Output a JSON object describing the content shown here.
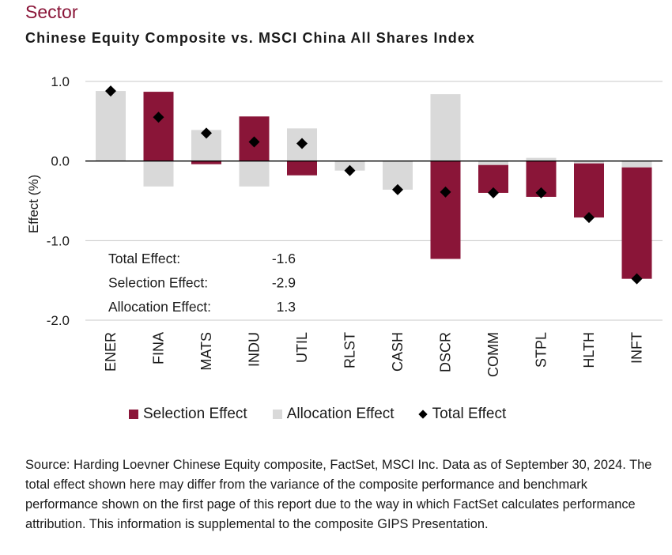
{
  "header": {
    "section": "Sector",
    "title": "Chinese Equity Composite vs. MSCI China All Shares Index"
  },
  "chart_data": {
    "type": "bar",
    "stacked": true,
    "ylabel": "Effect (%)",
    "ylim": [
      -2.0,
      1.0
    ],
    "yticks": [
      1.0,
      0.0,
      -1.0,
      -2.0
    ],
    "ytick_labels": [
      "1.0",
      "0.0",
      "-1.0",
      "-2.0"
    ],
    "grid": true,
    "categories": [
      "ENER",
      "FINA",
      "MATS",
      "INDU",
      "UTIL",
      "RLST",
      "CASH",
      "DSCR",
      "COMM",
      "STPL",
      "HLTH",
      "INFT"
    ],
    "series": [
      {
        "name": "Selection Effect",
        "type": "bar",
        "color": "#8a1538",
        "values": [
          0.0,
          0.87,
          -0.04,
          0.56,
          -0.18,
          0.0,
          0.0,
          -1.23,
          -0.35,
          -0.45,
          -0.68,
          -1.4
        ]
      },
      {
        "name": "Allocation Effect",
        "type": "bar",
        "color": "#d9d9d9",
        "values": [
          0.88,
          -0.32,
          0.39,
          -0.32,
          0.41,
          -0.12,
          -0.36,
          0.84,
          -0.05,
          0.04,
          -0.03,
          -0.08
        ]
      },
      {
        "name": "Total Effect",
        "type": "marker",
        "color": "#000000",
        "values": [
          0.88,
          0.55,
          0.35,
          0.24,
          0.22,
          -0.12,
          -0.36,
          -0.39,
          -0.4,
          -0.4,
          -0.71,
          -1.48
        ]
      }
    ],
    "summary": [
      {
        "label": "Total Effect:",
        "value": "-1.6"
      },
      {
        "label": "Selection Effect:",
        "value": "-2.9"
      },
      {
        "label": "Allocation Effect:",
        "value": "1.3"
      }
    ]
  },
  "legend": {
    "selection": "Selection Effect",
    "allocation": "Allocation Effect",
    "total": "Total Effect"
  },
  "colors": {
    "selection": "#8a1538",
    "allocation": "#d9d9d9",
    "total": "#000000",
    "heading": "#8a1538"
  },
  "footer": {
    "source": "Source: Harding Loevner Chinese Equity composite, FactSet, MSCI Inc. Data as of September 30, 2024. The total effect shown here may differ from the variance of the composite performance and benchmark performance shown on the first page of this report due to the way in which FactSet calculates performance attribution. This information is supplemental to the composite GIPS Presentation."
  }
}
